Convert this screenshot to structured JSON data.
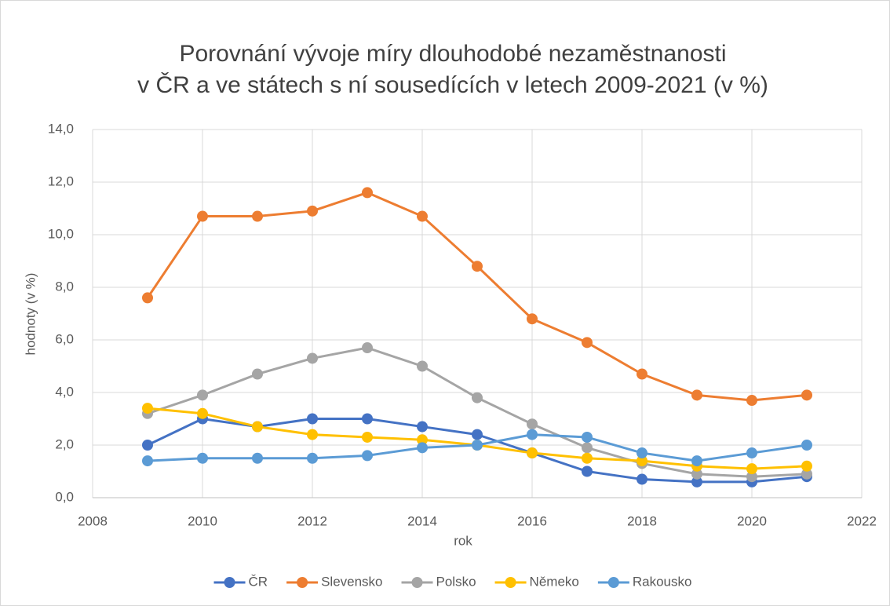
{
  "chart_data": {
    "type": "line",
    "title": [
      "Porovnání vývoje míry dlouhodobé nezaměstnanosti",
      "v ČR a ve státech s ní sousedících v letech 2009-2021 (v %)"
    ],
    "x_label": "rok",
    "y_label": "hodnoty (v %)",
    "x": [
      2009,
      2010,
      2011,
      2012,
      2013,
      2014,
      2015,
      2016,
      2017,
      2018,
      2019,
      2020,
      2021
    ],
    "series": [
      {
        "name": "ČR",
        "color": "#4472c4",
        "values": [
          2.0,
          3.0,
          2.7,
          3.0,
          3.0,
          2.7,
          2.4,
          1.7,
          1.0,
          0.7,
          0.6,
          0.6,
          0.8
        ]
      },
      {
        "name": "Slevensko",
        "color": "#ed7d31",
        "values": [
          7.6,
          10.7,
          10.7,
          10.9,
          11.6,
          10.7,
          8.8,
          6.8,
          5.9,
          4.7,
          3.9,
          3.7,
          3.9
        ]
      },
      {
        "name": "Polsko",
        "color": "#a5a5a5",
        "values": [
          3.2,
          3.9,
          4.7,
          5.3,
          5.7,
          5.0,
          3.8,
          2.8,
          1.9,
          1.3,
          0.9,
          0.8,
          0.9
        ]
      },
      {
        "name": "Němeko",
        "color": "#ffc000",
        "values": [
          3.4,
          3.2,
          2.7,
          2.4,
          2.3,
          2.2,
          2.0,
          1.7,
          1.5,
          1.4,
          1.2,
          1.1,
          1.2
        ]
      },
      {
        "name": "Rakousko",
        "color": "#5b9bd5",
        "values": [
          1.4,
          1.5,
          1.5,
          1.5,
          1.6,
          1.9,
          2.0,
          2.4,
          2.3,
          1.7,
          1.4,
          1.7,
          2.0
        ]
      }
    ],
    "xlim": [
      2008,
      2022
    ],
    "xticks": [
      2008,
      2010,
      2012,
      2014,
      2016,
      2018,
      2020,
      2022
    ],
    "ylim": [
      0,
      14
    ],
    "yticks": [
      {
        "value": 0,
        "label": "0,0"
      },
      {
        "value": 2,
        "label": "2,0"
      },
      {
        "value": 4,
        "label": "4,0"
      },
      {
        "value": 6,
        "label": "6,0"
      },
      {
        "value": 8,
        "label": "8,0"
      },
      {
        "value": 10,
        "label": "10,0"
      },
      {
        "value": 12,
        "label": "12,0"
      },
      {
        "value": 14,
        "label": "14,0"
      }
    ],
    "grid": true,
    "legend": "bottom"
  }
}
